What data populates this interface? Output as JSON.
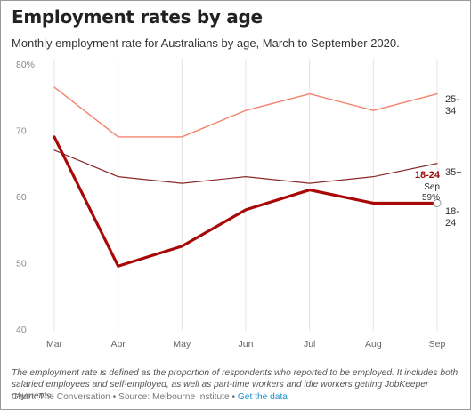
{
  "title": "Employment rates by age",
  "subtitle": "Monthly employment rate for Australians by age, March to September 2020.",
  "note": "The employment rate is defined as the proportion of respondents who reported to be employed. It includes both salaried employees and self-employed, as well as part-time workers and idle workers getting JobKeeper payments.",
  "credits": {
    "chart": "Chart: The Conversation",
    "separator": " • ",
    "source": "Source: Melbourne Institute",
    "link": "Get the data"
  },
  "chart_data": {
    "type": "line",
    "title": "Employment rates by age",
    "categories": [
      "Mar",
      "Apr",
      "May",
      "Jun",
      "Jul",
      "Aug",
      "Sep"
    ],
    "ylim": [
      40,
      80
    ],
    "yticks": [
      40,
      50,
      60,
      70,
      80
    ],
    "ytick_labels": [
      "40",
      "50",
      "60",
      "70",
      "80%"
    ],
    "grid": "vertical",
    "series": [
      {
        "name": "25-34",
        "label_lines": [
          "25-",
          "34"
        ],
        "color": "#f4836c",
        "width": 1.4,
        "values": [
          76.5,
          69,
          69,
          73,
          75.5,
          73,
          75.5
        ]
      },
      {
        "name": "35+",
        "label_lines": [
          "35+"
        ],
        "color": "#8b2a2a",
        "width": 1.2,
        "values": [
          67,
          63,
          62,
          63,
          62,
          63,
          65
        ]
      },
      {
        "name": "18-24",
        "label_lines": [
          "18-",
          "24"
        ],
        "color": "#a80808",
        "width": 3.2,
        "values": [
          69,
          49.5,
          52.5,
          58,
          61,
          59,
          59
        ]
      }
    ],
    "annotation": {
      "series": "18-24",
      "heading": "18-24",
      "month": "Sep",
      "value": "59%"
    }
  }
}
